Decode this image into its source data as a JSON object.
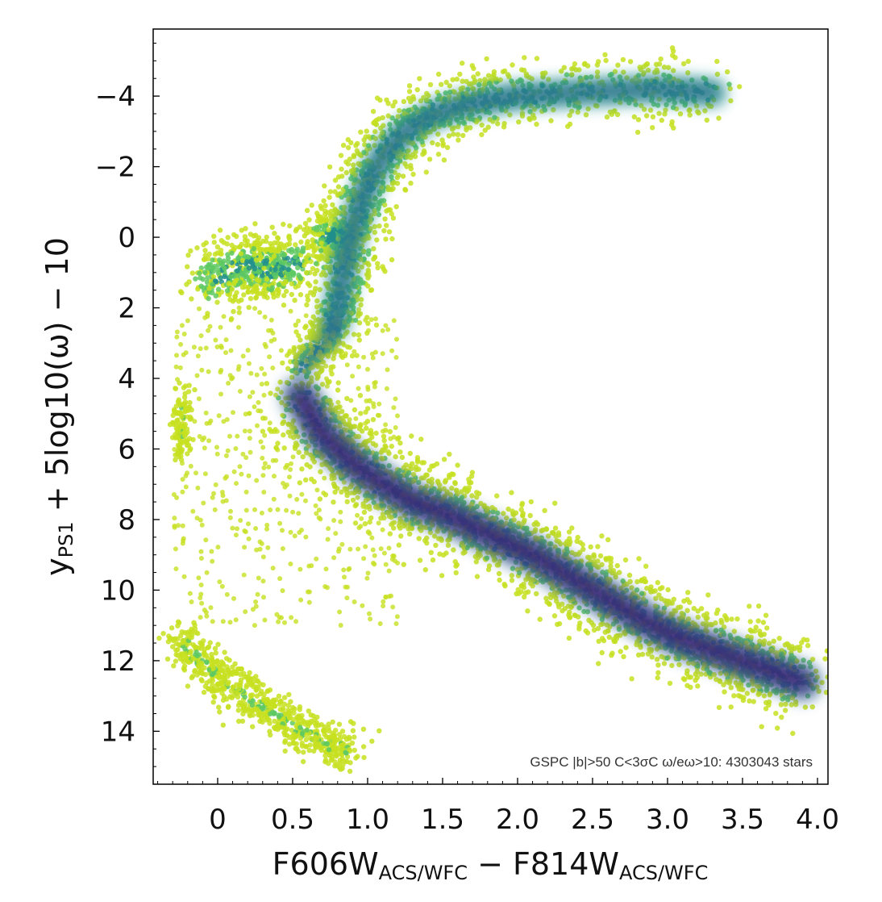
{
  "chart_data": {
    "type": "scatter",
    "title": "",
    "xlabel": {
      "parts": [
        {
          "text": "F606W",
          "sub": false
        },
        {
          "text": "ACS/WFC",
          "sub": true
        },
        {
          "text": " − F814W",
          "sub": false
        },
        {
          "text": "ACS/WFC",
          "sub": true
        }
      ]
    },
    "ylabel": {
      "parts": [
        {
          "text": "y",
          "sub": false
        },
        {
          "text": "PS1",
          "sub": true
        },
        {
          "text": " + 5log10(ω) − 10",
          "sub": false
        }
      ]
    },
    "xlim": [
      -0.43,
      4.07
    ],
    "ylim": [
      15.5,
      -5.9
    ],
    "y_inverted": true,
    "xticks": [
      0,
      0.5,
      1.0,
      1.5,
      2.0,
      2.5,
      3.0,
      3.5,
      4.0
    ],
    "xtick_labels": [
      "0",
      "0.5",
      "1.0",
      "1.5",
      "2.0",
      "2.5",
      "3.0",
      "3.5",
      "4.0"
    ],
    "yticks": [
      -4,
      -2,
      0,
      2,
      4,
      6,
      8,
      10,
      12,
      14
    ],
    "ytick_labels": [
      "−4",
      "−2",
      "0",
      "2",
      "4",
      "6",
      "8",
      "10",
      "12",
      "14"
    ],
    "grid": false,
    "colormap": [
      "#3b0f70",
      "#31688e",
      "#21918c",
      "#5ec962",
      "#c7e020"
    ],
    "annotation": "GSPC |b|>50 C<3σC ω/eω>10: 4303043 stars",
    "series": [
      {
        "component": "main_sequence",
        "x": [
          0.55,
          0.7,
          0.9,
          1.1,
          1.3,
          1.5,
          1.7,
          1.9,
          2.1,
          2.3,
          2.5,
          2.7,
          2.9,
          3.1,
          3.3,
          3.5,
          3.7,
          3.9
        ],
        "y": [
          4.5,
          5.6,
          6.4,
          7.0,
          7.5,
          7.8,
          8.2,
          8.6,
          9.0,
          9.5,
          10.0,
          10.5,
          11.0,
          11.4,
          11.7,
          12.0,
          12.3,
          12.6
        ]
      },
      {
        "component": "subgiant_branch",
        "x": [
          0.55,
          0.62,
          0.7,
          0.75,
          0.78
        ],
        "y": [
          3.8,
          3.4,
          3.1,
          2.8,
          2.5
        ]
      },
      {
        "component": "red_giant_branch",
        "x": [
          0.78,
          0.82,
          0.86,
          0.92,
          1.0,
          1.1,
          1.25,
          1.45,
          1.7,
          2.0,
          2.4,
          2.9,
          3.3
        ],
        "y": [
          2.5,
          1.5,
          0.5,
          -0.5,
          -1.5,
          -2.3,
          -3.0,
          -3.5,
          -3.8,
          -4.0,
          -4.1,
          -4.2,
          -4.1
        ]
      },
      {
        "component": "red_clump",
        "x": [
          0.72,
          0.78,
          0.85
        ],
        "y": [
          0.0,
          -0.1,
          0.1
        ]
      },
      {
        "component": "horizontal_branch",
        "x": [
          -0.05,
          0.1,
          0.25,
          0.4,
          0.55
        ],
        "y": [
          1.3,
          0.9,
          0.8,
          1.0,
          0.6
        ]
      },
      {
        "component": "white_dwarf_sequence",
        "x": [
          -0.25,
          -0.15,
          0.0,
          0.15,
          0.3,
          0.45,
          0.6,
          0.75,
          0.9
        ],
        "y": [
          11.3,
          11.9,
          12.4,
          12.9,
          13.3,
          13.7,
          14.1,
          14.4,
          14.6
        ]
      },
      {
        "component": "blue_clump",
        "x": [
          -0.24,
          -0.24
        ],
        "y": [
          4.8,
          6.0
        ]
      }
    ]
  }
}
